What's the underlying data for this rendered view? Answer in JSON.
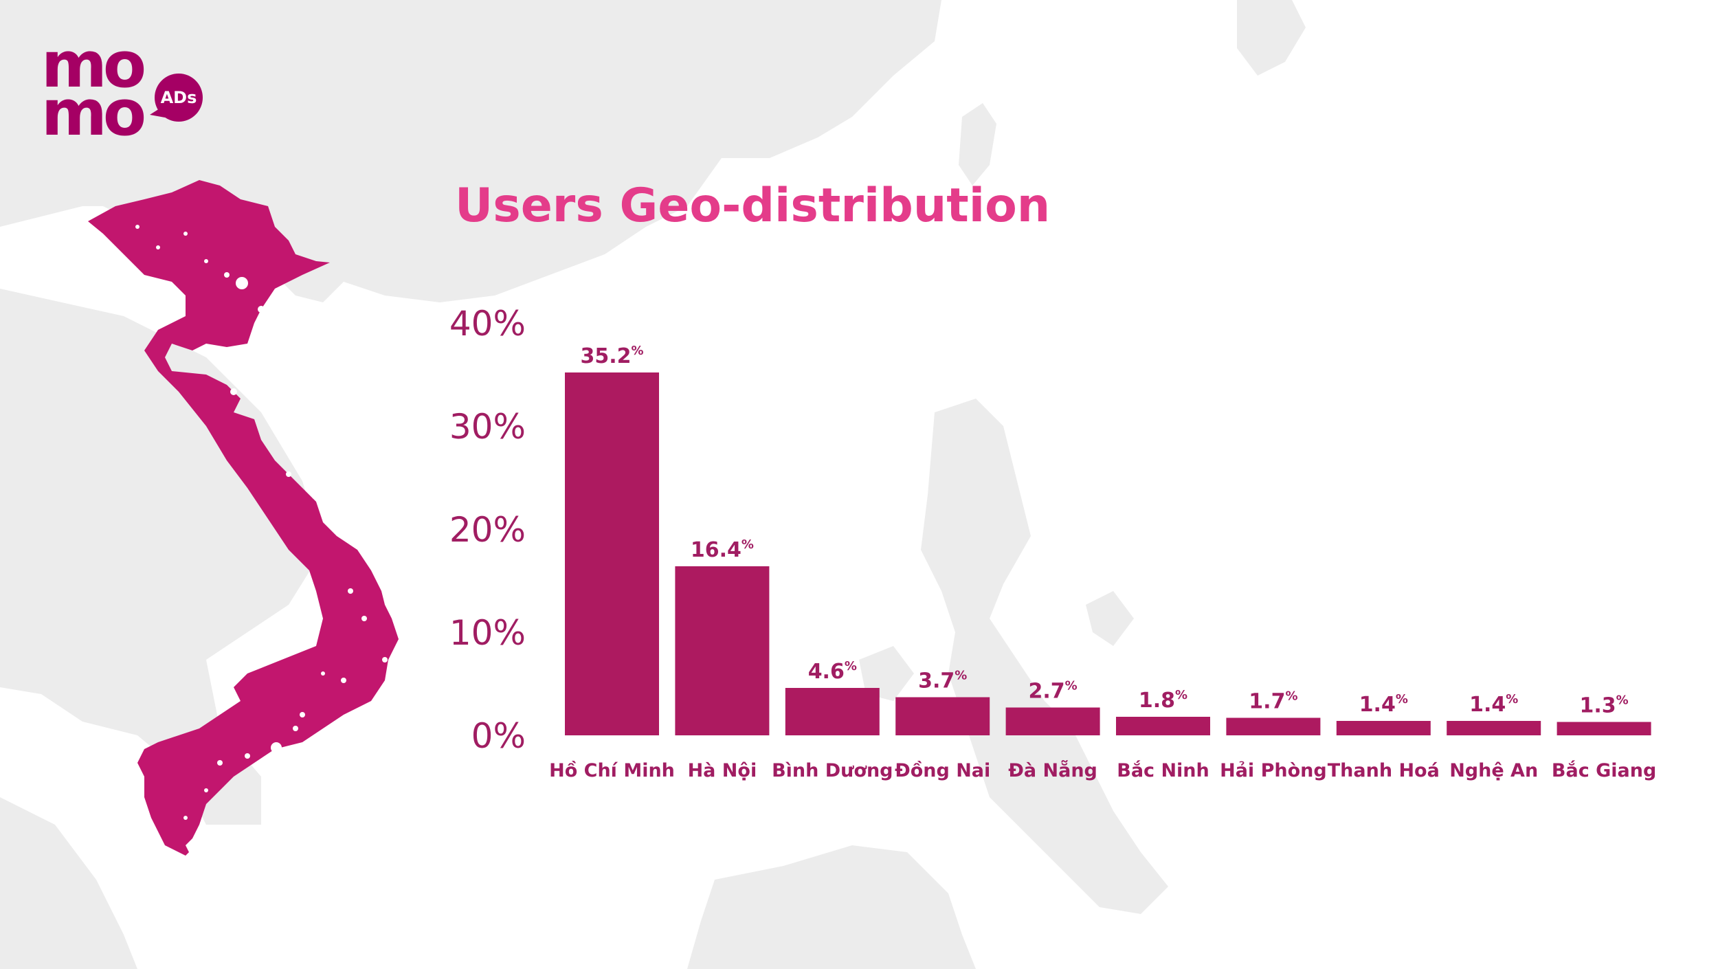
{
  "brand": {
    "logo_text_line1": "mo",
    "logo_text_line2": "mo",
    "badge_text": "ADs",
    "primary_color": "#a50064",
    "title_color": "#e43c8a",
    "bar_color": "#ad1a60"
  },
  "background": {
    "map_region": "Southeast Asia",
    "highlighted_country": "Vietnam",
    "highlight_color": "#c2166e"
  },
  "chart_data": {
    "type": "bar",
    "title": "Users Geo-distribution",
    "categories": [
      "Hồ Chí Minh",
      "Hà Nội",
      "Bình Dương",
      "Đồng Nai",
      "Đà Nẵng",
      "Bắc Ninh",
      "Hải Phòng",
      "Thanh Hoá",
      "Nghệ An",
      "Bắc Giang"
    ],
    "values": [
      35.2,
      16.4,
      4.6,
      3.7,
      2.7,
      1.8,
      1.7,
      1.4,
      1.4,
      1.3
    ],
    "value_labels": [
      "35.2",
      "16.4",
      "4.6",
      "3.7",
      "2.7",
      "1.8",
      "1.7",
      "1.4",
      "1.4",
      "1.3"
    ],
    "value_unit": "%",
    "yticks": [
      0,
      10,
      20,
      30,
      40
    ],
    "ytick_labels": [
      "0%",
      "10%",
      "20%",
      "30%",
      "40%"
    ],
    "ylim": [
      0,
      40
    ],
    "xlabel": "",
    "ylabel": "",
    "grid": false,
    "legend": "none"
  }
}
